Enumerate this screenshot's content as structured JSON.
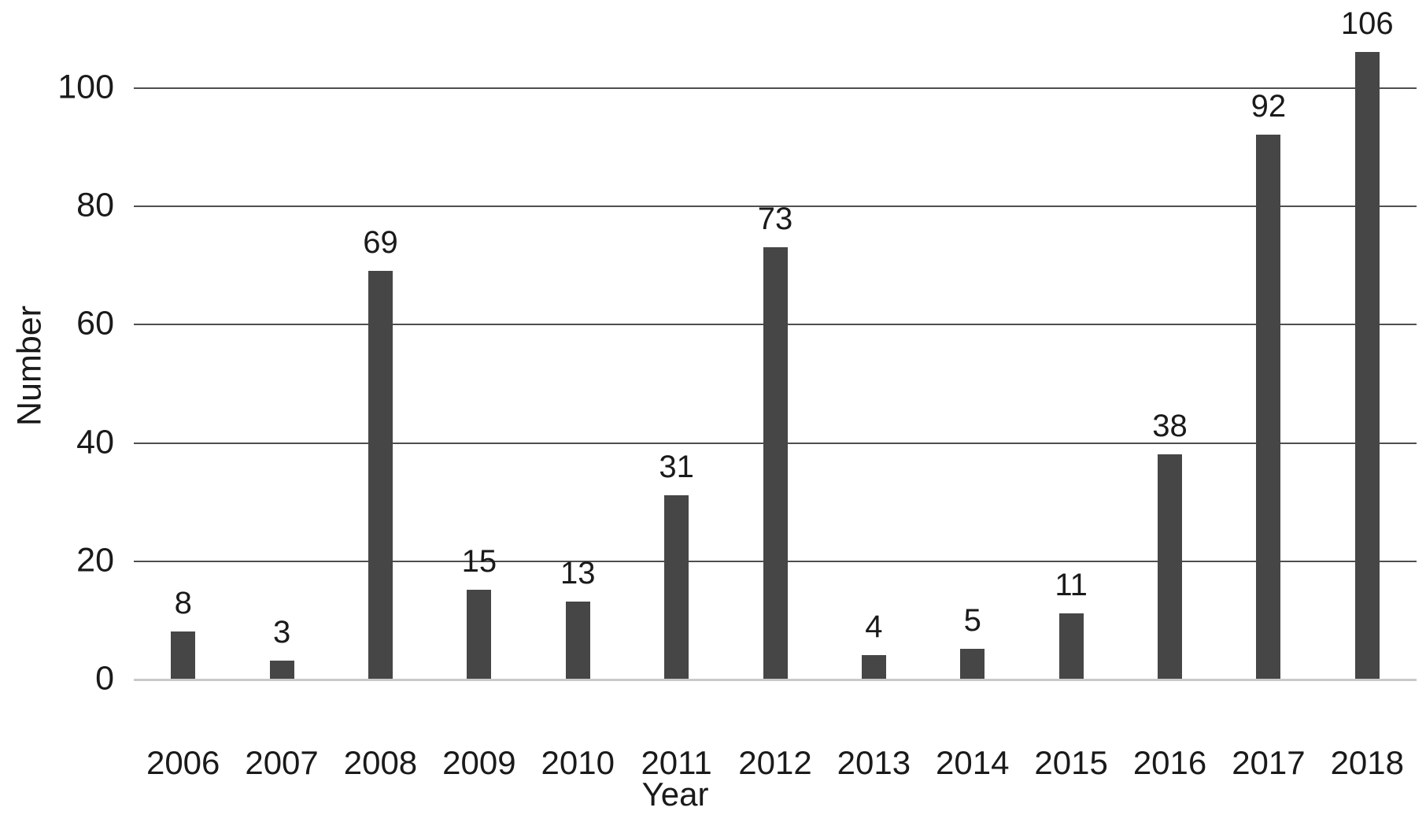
{
  "chart_data": {
    "type": "bar",
    "categories": [
      "2006",
      "2007",
      "2008",
      "2009",
      "2010",
      "2011",
      "2012",
      "2013",
      "2014",
      "2015",
      "2016",
      "2017",
      "2018"
    ],
    "values": [
      8,
      3,
      69,
      15,
      13,
      31,
      73,
      4,
      5,
      11,
      38,
      92,
      106
    ],
    "title": "",
    "xlabel": "Year",
    "ylabel": "Number",
    "yticks": [
      0,
      20,
      40,
      60,
      80,
      100
    ],
    "ylim": [
      0,
      100
    ],
    "grid": true,
    "legend": "none",
    "data_labels": true,
    "colors": {
      "bar": "#464646",
      "gridline": "#4f4f4f",
      "baseline": "#c9c9c9",
      "text": "#1a1a1a",
      "background": "#ffffff"
    }
  },
  "layout_note": "single series vertical bar chart, value labels above each bar"
}
